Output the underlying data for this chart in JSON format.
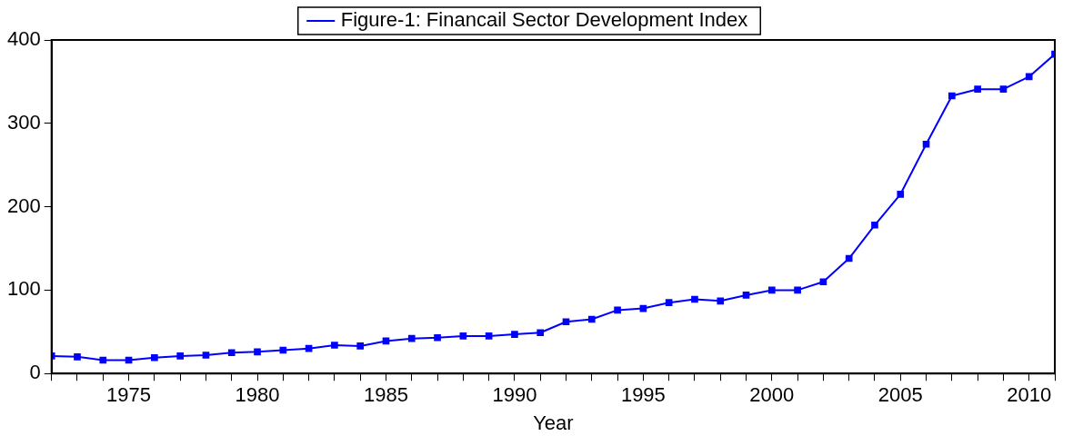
{
  "chart_data": {
    "type": "line",
    "xlabel": "Year",
    "legend": "top",
    "marker": "square",
    "line_style": "solid",
    "grid": false,
    "x": [
      1972,
      1973,
      1974,
      1975,
      1976,
      1977,
      1978,
      1979,
      1980,
      1981,
      1982,
      1983,
      1984,
      1985,
      1986,
      1987,
      1988,
      1989,
      1990,
      1991,
      1992,
      1993,
      1994,
      1995,
      1996,
      1997,
      1998,
      1999,
      2000,
      2001,
      2002,
      2003,
      2004,
      2005,
      2006,
      2007,
      2008,
      2009,
      2010,
      2011
    ],
    "series": [
      {
        "name": "Figure-1: Financail Sector Development Index",
        "color": "#0000ff",
        "values": [
          21,
          20,
          16,
          16,
          19,
          21,
          22,
          25,
          26,
          28,
          30,
          34,
          33,
          39,
          42,
          43,
          45,
          45,
          47,
          49,
          62,
          65,
          76,
          78,
          85,
          89,
          87,
          94,
          100,
          100,
          110,
          138,
          178,
          215,
          275,
          333,
          341,
          341,
          356,
          383
        ]
      }
    ],
    "xlim": [
      1972,
      2011
    ],
    "xticks": [
      {
        "value": 1972,
        "label": null
      },
      {
        "value": 1973,
        "label": null
      },
      {
        "value": 1974,
        "label": null
      },
      1975,
      {
        "value": 1976,
        "label": null
      },
      {
        "value": 1977,
        "label": null
      },
      {
        "value": 1978,
        "label": null
      },
      {
        "value": 1979,
        "label": null
      },
      1980,
      {
        "value": 1981,
        "label": null
      },
      {
        "value": 1982,
        "label": null
      },
      {
        "value": 1983,
        "label": null
      },
      {
        "value": 1984,
        "label": null
      },
      1985,
      {
        "value": 1986,
        "label": null
      },
      {
        "value": 1987,
        "label": null
      },
      {
        "value": 1988,
        "label": null
      },
      {
        "value": 1989,
        "label": null
      },
      1990,
      {
        "value": 1991,
        "label": null
      },
      {
        "value": 1992,
        "label": null
      },
      {
        "value": 1993,
        "label": null
      },
      {
        "value": 1994,
        "label": null
      },
      1995,
      {
        "value": 1996,
        "label": null
      },
      {
        "value": 1997,
        "label": null
      },
      {
        "value": 1998,
        "label": null
      },
      {
        "value": 1999,
        "label": null
      },
      2000,
      {
        "value": 2001,
        "label": null
      },
      {
        "value": 2002,
        "label": null
      },
      {
        "value": 2003,
        "label": null
      },
      {
        "value": 2004,
        "label": null
      },
      2005,
      {
        "value": 2006,
        "label": null
      },
      {
        "value": 2007,
        "label": null
      },
      {
        "value": 2008,
        "label": null
      },
      {
        "value": 2009,
        "label": null
      },
      2010,
      {
        "value": 2011,
        "label": null
      }
    ],
    "ylim": [
      0,
      400
    ],
    "yticks": [
      0,
      100,
      200,
      300,
      400
    ]
  }
}
